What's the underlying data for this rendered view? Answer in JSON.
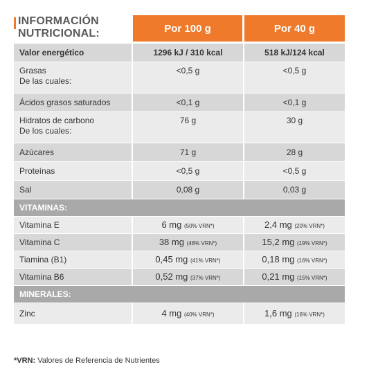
{
  "title": {
    "line1": "INFORMACIÓN",
    "line2": "NUTRICIONAL:"
  },
  "columns": {
    "per100": "Por 100 g",
    "per40": "Por 40 g"
  },
  "nutrients": [
    {
      "label": "Valor energético",
      "sublabel": "",
      "v100": "1296 kJ / 310 kcal",
      "v40": "518 kJ/124 kcal"
    },
    {
      "label": "Grasas",
      "sublabel": "De las cuales:",
      "v100": "<0,5 g",
      "v40": "<0,5 g"
    },
    {
      "label": "Ácidos grasos saturados",
      "sublabel": "",
      "v100": "<0,1 g",
      "v40": "<0,1 g"
    },
    {
      "label": "Hidratos de carbono",
      "sublabel": "De los cuales:",
      "v100": "76 g",
      "v40": "30 g"
    },
    {
      "label": "Azúcares",
      "sublabel": "",
      "v100": "71 g",
      "v40": "28 g"
    },
    {
      "label": "Proteínas",
      "sublabel": "",
      "v100": "<0,5 g",
      "v40": "<0,5 g"
    },
    {
      "label": "Sal",
      "sublabel": "",
      "v100": "0,08 g",
      "v40": "0,03 g"
    }
  ],
  "vitamins_heading": "VITAMINAS:",
  "vitamins": [
    {
      "label": "Vitamina E",
      "v100": "6 mg",
      "v100_vrn": "(50% VRN*)",
      "v40": "2,4 mg",
      "v40_vrn": "(20% VRN*)"
    },
    {
      "label": "Vitamina C",
      "v100": "38 mg",
      "v100_vrn": "(48% VRN*)",
      "v40": "15,2 mg",
      "v40_vrn": "(19% VRN*)"
    },
    {
      "label": "Tiamina (B1)",
      "v100": "0,45 mg",
      "v100_vrn": "(41% VRN*)",
      "v40": "0,18 mg",
      "v40_vrn": "(16% VRN*)"
    },
    {
      "label": "Vitamina B6",
      "v100": "0,52 mg",
      "v100_vrn": "(37% VRN*)",
      "v40": "0,21 mg",
      "v40_vrn": "(15% VRN*)"
    }
  ],
  "minerals_heading": "MINERALES:",
  "minerals": [
    {
      "label": "Zinc",
      "v100": "4 mg",
      "v100_vrn": "(40% VRN*)",
      "v40": "1,6 mg",
      "v40_vrn": "(16% VRN*)"
    }
  ],
  "footnote": {
    "key": "*VRN:",
    "text": " Valores de Referencia de Nutrientes"
  },
  "colors": {
    "accent": "#f07a2b",
    "row_dark": "#d7d7d7",
    "row_light": "#ebebeb",
    "section": "#a9a9a9"
  }
}
